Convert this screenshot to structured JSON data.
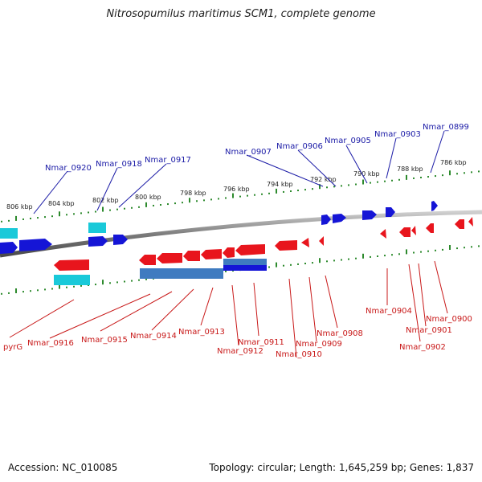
{
  "title": "Nitrosopumilus maritimus SCM1, complete genome",
  "footer": {
    "accession": "Accession: NC_010085",
    "summary": "Topology: circular; Length: 1,645,259 bp; Genes: 1,837"
  },
  "colors": {
    "forward": "#1515d6",
    "reverse": "#e8151d",
    "rna": "#19c9d9",
    "label_forward": "#1a1aa6",
    "label_reverse": "#c81818",
    "tick": "#2d8a2d",
    "backbone": "#8a8a8a"
  },
  "kbp_ticks": [
    "806 kbp",
    "804 kbp",
    "802 kbp",
    "800 kbp",
    "798 kbp",
    "796 kbp",
    "794 kbp",
    "792 kbp",
    "790 kbp",
    "788 kbp",
    "786 kbp"
  ],
  "forward_labels": [
    "Nmar_0920",
    "Nmar_0918",
    "Nmar_0917",
    "Nmar_0907",
    "Nmar_0906",
    "Nmar_0905",
    "Nmar_0903",
    "Nmar_0899"
  ],
  "reverse_labels": [
    "pyrG",
    "Nmar_0916",
    "Nmar_0915",
    "Nmar_0914",
    "Nmar_0913",
    "Nmar_0912",
    "Nmar_0911",
    "Nmar_0910",
    "Nmar_0909",
    "Nmar_0908",
    "Nmar_0904",
    "Nmar_0902",
    "Nmar_0901",
    "Nmar_0900"
  ]
}
